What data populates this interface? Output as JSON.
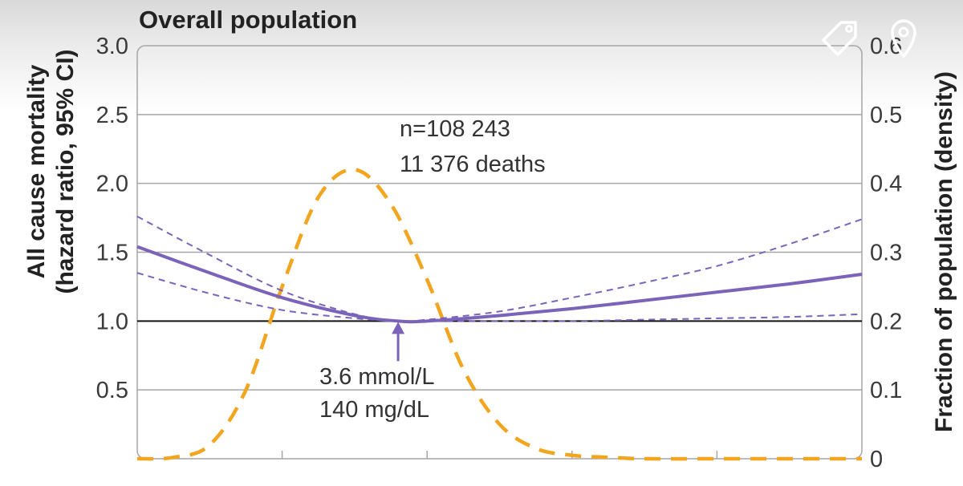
{
  "chart_data": {
    "type": "line",
    "title": "Overall population",
    "ylabel": [
      "All cause mortality",
      "(hazard ratio, 95% CI)"
    ],
    "y2label": "Fraction of population (density)",
    "xlabel": "",
    "ylim": [
      0,
      3.0
    ],
    "y2lim": [
      0,
      0.6
    ],
    "xlim": [
      0,
      10
    ],
    "xticks": [
      0,
      2,
      4,
      6,
      8,
      10
    ],
    "yticks": [
      "3.0",
      "2.5",
      "2.0",
      "1.5",
      "1.0",
      "0.5"
    ],
    "y2ticks": [
      "0.6",
      "0.5",
      "0.4",
      "0.3",
      "0.2",
      "0.1",
      "0"
    ],
    "reference_line": 1.0,
    "grid": true,
    "series": [
      {
        "role": "hazard_ratio",
        "style": "solid",
        "color": "#7a63b8",
        "axis": "left",
        "x": [
          0,
          1,
          2,
          3,
          3.6,
          4,
          5,
          6,
          7,
          8,
          9,
          10
        ],
        "y": [
          1.54,
          1.35,
          1.17,
          1.04,
          1.0,
          1.0,
          1.04,
          1.09,
          1.15,
          1.21,
          1.27,
          1.34
        ]
      },
      {
        "role": "ci_upper",
        "style": "dashed",
        "color": "#7a63b8",
        "axis": "left",
        "x": [
          0,
          1,
          2,
          3,
          3.6,
          4,
          5,
          6,
          7,
          8,
          9,
          10
        ],
        "y": [
          1.76,
          1.48,
          1.22,
          1.05,
          1.0,
          1.01,
          1.07,
          1.17,
          1.28,
          1.4,
          1.56,
          1.74
        ]
      },
      {
        "role": "ci_lower",
        "style": "dashed",
        "color": "#7a63b8",
        "axis": "left",
        "x": [
          0,
          1,
          2,
          3,
          3.6,
          4,
          5,
          6,
          7,
          8,
          9,
          10
        ],
        "y": [
          1.35,
          1.2,
          1.08,
          1.02,
          1.0,
          1.0,
          1.0,
          1.0,
          1.01,
          1.02,
          1.03,
          1.05
        ]
      },
      {
        "role": "density",
        "style": "dashed",
        "color": "#f2a51e",
        "axis": "right",
        "x": [
          0,
          0.5,
          1,
          1.5,
          2,
          2.5,
          3,
          3.5,
          4,
          4.5,
          5,
          5.5,
          6,
          6.5,
          7,
          8,
          9,
          10
        ],
        "y": [
          0,
          0.002,
          0.02,
          0.1,
          0.25,
          0.38,
          0.42,
          0.37,
          0.26,
          0.13,
          0.05,
          0.015,
          0.005,
          0.002,
          0,
          0,
          0,
          0
        ]
      }
    ],
    "annotations": {
      "sample": [
        "n=108 243",
        "11 376 deaths"
      ],
      "optimum": [
        "3.6 mmol/L",
        "140 mg/dL"
      ],
      "optimum_x": 3.6,
      "optimum_y": 1.0
    }
  },
  "overlay_icons": [
    "tag-icon",
    "location-pin-icon"
  ]
}
